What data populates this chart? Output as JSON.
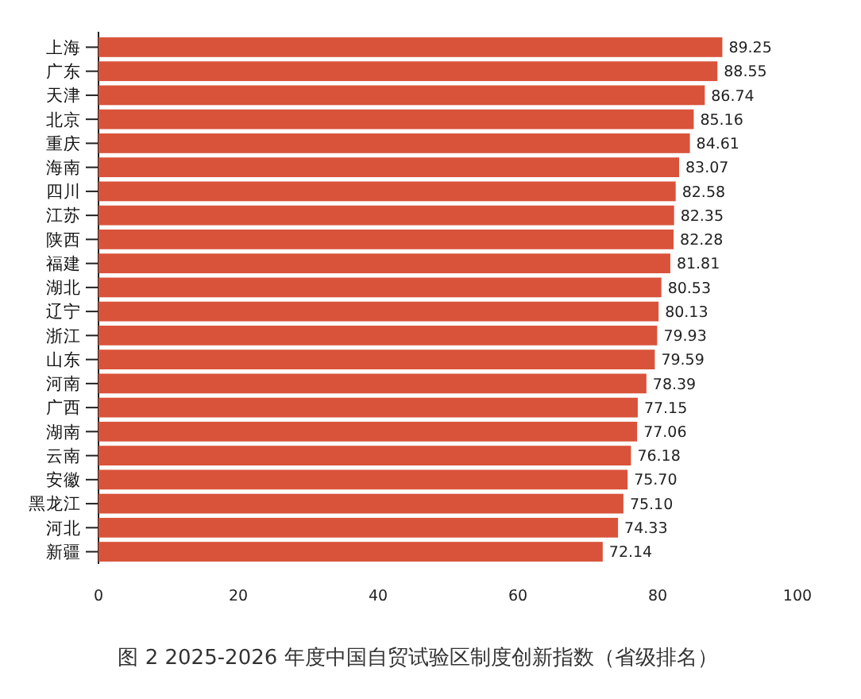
{
  "chart_data": {
    "type": "bar",
    "orientation": "horizontal",
    "title": "图 2 2025-2026 年度中国自贸试验区制度创新指数（省级排名）",
    "categories": [
      "上海",
      "广东",
      "天津",
      "北京",
      "重庆",
      "海南",
      "四川",
      "江苏",
      "陕西",
      "福建",
      "湖北",
      "辽宁",
      "浙江",
      "山东",
      "河南",
      "广西",
      "湖南",
      "云南",
      "安徽",
      "黑龙江",
      "河北",
      "新疆"
    ],
    "values": [
      89.25,
      88.55,
      86.74,
      85.16,
      84.61,
      83.07,
      82.58,
      82.35,
      82.28,
      81.81,
      80.53,
      80.13,
      79.93,
      79.59,
      78.39,
      77.15,
      77.06,
      76.18,
      75.7,
      75.1,
      74.33,
      72.14
    ],
    "value_labels": [
      "89.25",
      "88.55",
      "86.74",
      "85.16",
      "84.61",
      "83.07",
      "82.58",
      "82.35",
      "82.28",
      "81.81",
      "80.53",
      "80.13",
      "79.93",
      "79.59",
      "78.39",
      "77.15",
      "77.06",
      "76.18",
      "75.70",
      "75.10",
      "74.33",
      "72.14"
    ],
    "color": "#d9533a",
    "xlim": [
      0,
      100
    ],
    "xticks": [
      0,
      20,
      40,
      60,
      80,
      100
    ],
    "grid": false
  }
}
